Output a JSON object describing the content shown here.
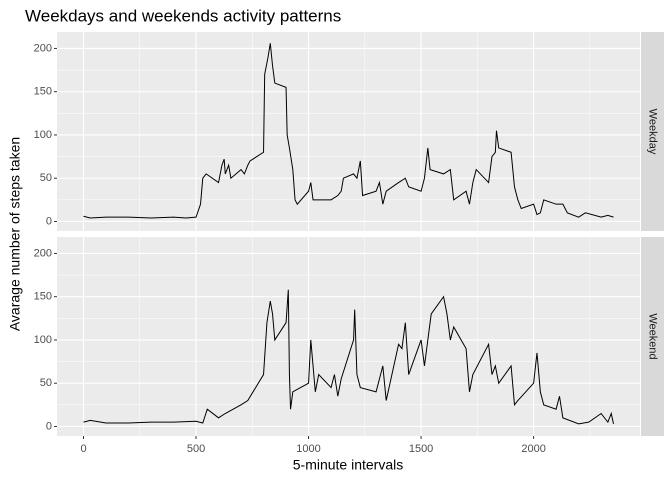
{
  "chart_data": [
    {
      "type": "line",
      "title": "Weekdays and weekends activity patterns",
      "y_label": "Avarage number of steps taken",
      "strip": "Weekday",
      "color": "#000000",
      "x": [
        0,
        30,
        100,
        200,
        300,
        400,
        455,
        500,
        520,
        530,
        545,
        600,
        615,
        625,
        630,
        645,
        655,
        700,
        715,
        730,
        740,
        800,
        805,
        820,
        830,
        840,
        850,
        900,
        905,
        915,
        930,
        940,
        950,
        1000,
        1010,
        1020,
        1100,
        1130,
        1145,
        1155,
        1200,
        1215,
        1230,
        1240,
        1300,
        1315,
        1330,
        1345,
        1400,
        1430,
        1445,
        1500,
        1515,
        1530,
        1540,
        1600,
        1630,
        1645,
        1700,
        1715,
        1730,
        1745,
        1800,
        1815,
        1830,
        1835,
        1845,
        1900,
        1915,
        1930,
        1945,
        2000,
        2015,
        2030,
        2045,
        2100,
        2130,
        2150,
        2200,
        2230,
        2300,
        2330,
        2355
      ],
      "values": [
        6,
        4,
        5,
        5,
        4,
        5,
        4,
        5,
        20,
        50,
        55,
        45,
        65,
        72,
        55,
        65,
        50,
        60,
        55,
        65,
        70,
        80,
        170,
        190,
        206,
        180,
        160,
        155,
        100,
        85,
        60,
        25,
        20,
        35,
        45,
        25,
        25,
        30,
        35,
        50,
        55,
        50,
        70,
        30,
        35,
        45,
        20,
        35,
        45,
        50,
        40,
        35,
        50,
        85,
        60,
        55,
        60,
        25,
        35,
        20,
        45,
        60,
        45,
        75,
        80,
        105,
        85,
        80,
        40,
        25,
        15,
        20,
        8,
        10,
        25,
        20,
        20,
        10,
        5,
        10,
        5,
        7,
        5
      ],
      "xlim": [
        -117.75,
        2472.75
      ],
      "ylim": [
        -11,
        219
      ],
      "xticks": [
        0,
        500,
        1000,
        1500,
        2000
      ],
      "yticks": [
        0,
        50,
        100,
        150,
        200
      ],
      "x_minor_grid": [
        250,
        750,
        1250,
        1750,
        2250
      ],
      "y_minor_grid": [
        25,
        75,
        125,
        175
      ]
    },
    {
      "type": "line",
      "x_label": "5-minute intervals",
      "strip": "Weekend",
      "color": "#000000",
      "x": [
        0,
        30,
        100,
        200,
        300,
        400,
        500,
        530,
        550,
        600,
        630,
        700,
        730,
        800,
        815,
        830,
        840,
        850,
        900,
        910,
        915,
        920,
        930,
        1000,
        1010,
        1030,
        1045,
        1100,
        1115,
        1130,
        1145,
        1200,
        1205,
        1215,
        1230,
        1300,
        1330,
        1345,
        1400,
        1415,
        1430,
        1445,
        1500,
        1515,
        1530,
        1545,
        1600,
        1615,
        1630,
        1645,
        1700,
        1715,
        1730,
        1800,
        1815,
        1830,
        1845,
        1900,
        1915,
        1930,
        2000,
        2015,
        2030,
        2045,
        2100,
        2115,
        2130,
        2200,
        2245,
        2300,
        2330,
        2345,
        2355
      ],
      "values": [
        5,
        7,
        4,
        4,
        5,
        5,
        6,
        4,
        20,
        10,
        15,
        25,
        30,
        60,
        120,
        145,
        130,
        100,
        120,
        158,
        60,
        20,
        40,
        50,
        100,
        40,
        60,
        45,
        60,
        35,
        55,
        100,
        135,
        60,
        45,
        40,
        70,
        30,
        95,
        90,
        120,
        60,
        100,
        70,
        100,
        130,
        150,
        130,
        100,
        115,
        90,
        40,
        60,
        95,
        60,
        70,
        50,
        70,
        25,
        30,
        50,
        85,
        40,
        25,
        20,
        35,
        10,
        3,
        5,
        15,
        5,
        15,
        3
      ],
      "xlim": [
        -117.75,
        2472.75
      ],
      "ylim": [
        -11,
        219
      ],
      "xticks": [
        0,
        500,
        1000,
        1500,
        2000
      ],
      "yticks": [
        0,
        50,
        100,
        150,
        200
      ],
      "x_minor_grid": [
        250,
        750,
        1250,
        1750,
        2250
      ],
      "y_minor_grid": [
        25,
        75,
        125,
        175
      ]
    }
  ]
}
